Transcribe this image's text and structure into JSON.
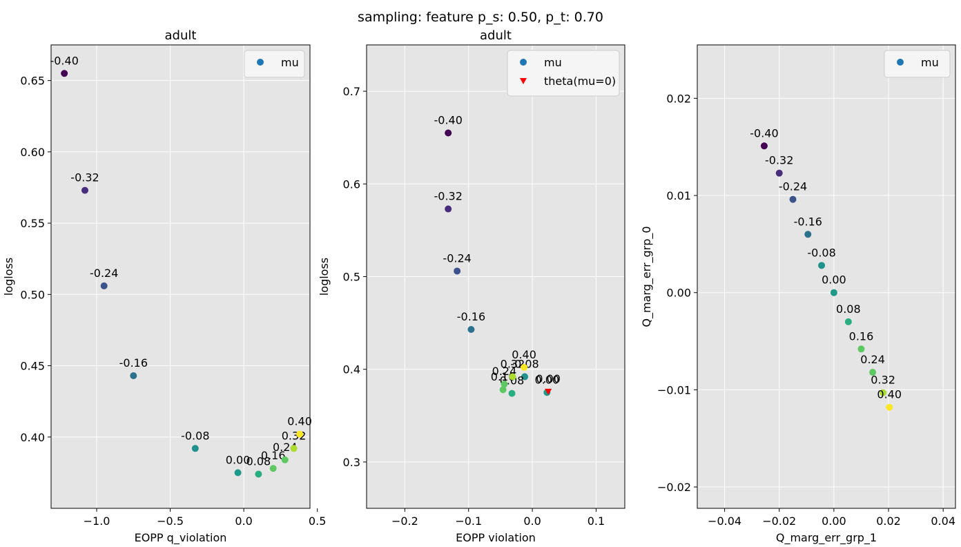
{
  "suptitle": "sampling: feature p_s: 0.50, p_t: 0.70",
  "chart_data": [
    {
      "type": "scatter",
      "title": "adult",
      "xlabel": "EOPP q_violation",
      "ylabel": "logloss",
      "xlim": [
        -1.31,
        0.45
      ],
      "ylim": [
        0.35,
        0.675
      ],
      "xticks": [
        -1.0,
        -0.5,
        0.0,
        0.5
      ],
      "xtick_labels": [
        "−1.0",
        "−0.5",
        "0.0",
        "0.5"
      ],
      "yticks": [
        0.4,
        0.45,
        0.5,
        0.55,
        0.6,
        0.65
      ],
      "ytick_labels": [
        "0.40",
        "0.45",
        "0.50",
        "0.55",
        "0.60",
        "0.65"
      ],
      "grid": true,
      "legend_position": "upper right",
      "legend": [
        {
          "label": "mu",
          "marker": "circle",
          "color": "#1f77b4"
        }
      ],
      "series": [
        {
          "name": "mu",
          "points": [
            {
              "mu": -0.4,
              "label": "-0.40",
              "x": -1.22,
              "y": 0.655,
              "color": "#440154"
            },
            {
              "mu": -0.32,
              "label": "-0.32",
              "x": -1.08,
              "y": 0.573,
              "color": "#472d7b"
            },
            {
              "mu": -0.24,
              "label": "-0.24",
              "x": -0.95,
              "y": 0.506,
              "color": "#3b528b"
            },
            {
              "mu": -0.16,
              "label": "-0.16",
              "x": -0.75,
              "y": 0.443,
              "color": "#2c728e"
            },
            {
              "mu": -0.08,
              "label": "-0.08",
              "x": -0.33,
              "y": 0.392,
              "color": "#21918c"
            },
            {
              "mu": 0.0,
              "label": "0.00",
              "x": -0.04,
              "y": 0.375,
              "color": "#1f9a8a"
            },
            {
              "mu": 0.08,
              "label": "0.08",
              "x": 0.1,
              "y": 0.374,
              "color": "#28ae80"
            },
            {
              "mu": 0.16,
              "label": "0.16",
              "x": 0.2,
              "y": 0.378,
              "color": "#5ec962"
            },
            {
              "mu": 0.24,
              "label": "0.24",
              "x": 0.28,
              "y": 0.384,
              "color": "#5ec962"
            },
            {
              "mu": 0.32,
              "label": "0.32",
              "x": 0.34,
              "y": 0.392,
              "color": "#addc30"
            },
            {
              "mu": 0.4,
              "label": "0.40",
              "x": 0.38,
              "y": 0.402,
              "color": "#fde725"
            }
          ]
        }
      ]
    },
    {
      "type": "scatter",
      "title": "adult",
      "xlabel": "EOPP violation",
      "ylabel": "logloss",
      "xlim": [
        -0.26,
        0.145
      ],
      "ylim": [
        0.25,
        0.75
      ],
      "xticks": [
        -0.2,
        -0.1,
        0.0,
        0.1
      ],
      "xtick_labels": [
        "−0.2",
        "−0.1",
        "0.0",
        "0.1"
      ],
      "yticks": [
        0.3,
        0.4,
        0.5,
        0.6,
        0.7
      ],
      "ytick_labels": [
        "0.3",
        "0.4",
        "0.5",
        "0.6",
        "0.7"
      ],
      "grid": true,
      "legend_position": "upper right",
      "legend": [
        {
          "label": "mu",
          "marker": "circle",
          "color": "#1f77b4"
        },
        {
          "label": "theta(mu=0)",
          "marker": "triangle-down",
          "color": "#ff0000"
        }
      ],
      "series": [
        {
          "name": "mu",
          "points": [
            {
              "mu": -0.4,
              "label": "-0.40",
              "x": -0.132,
              "y": 0.655,
              "color": "#440154"
            },
            {
              "mu": -0.32,
              "label": "-0.32",
              "x": -0.132,
              "y": 0.573,
              "color": "#472d7b"
            },
            {
              "mu": -0.24,
              "label": "-0.24",
              "x": -0.118,
              "y": 0.506,
              "color": "#3b528b"
            },
            {
              "mu": -0.16,
              "label": "-0.16",
              "x": -0.096,
              "y": 0.443,
              "color": "#2c728e"
            },
            {
              "mu": -0.08,
              "label": "-0.08",
              "x": -0.012,
              "y": 0.392,
              "color": "#21918c"
            },
            {
              "mu": 0.0,
              "label": "0.00",
              "x": 0.023,
              "y": 0.375,
              "color": "#1f9a8a"
            },
            {
              "mu": 0.08,
              "label": "0.08",
              "x": -0.032,
              "y": 0.374,
              "color": "#28ae80"
            },
            {
              "mu": 0.16,
              "label": "0.16",
              "x": -0.046,
              "y": 0.378,
              "color": "#5ec962"
            },
            {
              "mu": 0.24,
              "label": "0.24",
              "x": -0.044,
              "y": 0.384,
              "color": "#5ec962"
            },
            {
              "mu": 0.32,
              "label": "0.32",
              "x": -0.031,
              "y": 0.392,
              "color": "#addc30"
            },
            {
              "mu": 0.4,
              "label": "0.40",
              "x": -0.013,
              "y": 0.402,
              "color": "#fde725"
            }
          ]
        },
        {
          "name": "theta(mu=0)",
          "marker": "triangle-down",
          "points": [
            {
              "label": "0.00",
              "x": 0.025,
              "y": 0.376,
              "color": "#ff0000"
            }
          ]
        }
      ]
    },
    {
      "type": "scatter",
      "title": "",
      "xlabel": "Q_marg_err_grp_1",
      "ylabel": "Q_marg_err_grp_0",
      "xlim": [
        -0.05,
        0.0445
      ],
      "ylim": [
        -0.0222,
        0.0255
      ],
      "xticks": [
        -0.04,
        -0.02,
        0.0,
        0.02,
        0.04
      ],
      "xtick_labels": [
        "−0.04",
        "−0.02",
        "0.00",
        "0.02",
        "0.04"
      ],
      "yticks": [
        -0.02,
        -0.01,
        0.0,
        0.01,
        0.02
      ],
      "ytick_labels": [
        "−0.02",
        "−0.01",
        "0.00",
        "0.01",
        "0.02"
      ],
      "grid": true,
      "legend_position": "upper right",
      "legend": [
        {
          "label": "mu",
          "marker": "circle",
          "color": "#1f77b4"
        }
      ],
      "series": [
        {
          "name": "mu",
          "points": [
            {
              "mu": -0.4,
              "label": "-0.40",
              "x": -0.0255,
              "y": 0.0151,
              "color": "#440154"
            },
            {
              "mu": -0.32,
              "label": "-0.32",
              "x": -0.02,
              "y": 0.0123,
              "color": "#472d7b"
            },
            {
              "mu": -0.24,
              "label": "-0.24",
              "x": -0.015,
              "y": 0.0096,
              "color": "#3b528b"
            },
            {
              "mu": -0.16,
              "label": "-0.16",
              "x": -0.0095,
              "y": 0.006,
              "color": "#2c728e"
            },
            {
              "mu": -0.08,
              "label": "-0.08",
              "x": -0.0045,
              "y": 0.0028,
              "color": "#21918c"
            },
            {
              "mu": 0.0,
              "label": "0.00",
              "x": 0.0,
              "y": 0.0,
              "color": "#1f9a8a"
            },
            {
              "mu": 0.08,
              "label": "0.08",
              "x": 0.0053,
              "y": -0.003,
              "color": "#28ae80"
            },
            {
              "mu": 0.16,
              "label": "0.16",
              "x": 0.01,
              "y": -0.0058,
              "color": "#5ec962"
            },
            {
              "mu": 0.24,
              "label": "0.24",
              "x": 0.0142,
              "y": -0.0082,
              "color": "#5ec962"
            },
            {
              "mu": 0.32,
              "label": "0.32",
              "x": 0.018,
              "y": -0.0103,
              "color": "#addc30"
            },
            {
              "mu": 0.4,
              "label": "0.40",
              "x": 0.0203,
              "y": -0.0118,
              "color": "#fde725"
            }
          ]
        }
      ]
    }
  ]
}
